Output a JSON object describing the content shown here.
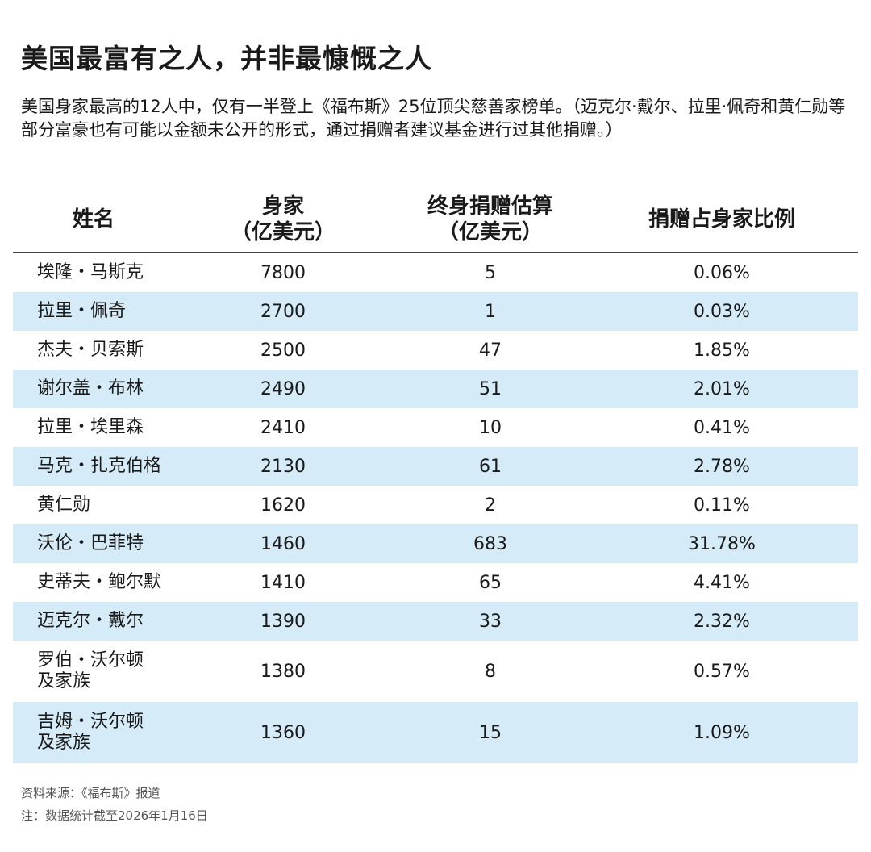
{
  "title": "美国最富有之人，并非最慷慨之人",
  "subtitle": "美国身家最高的12人中，仅有一半登上《福布斯》25位顶尖慈善家榜单。（迈克尔·戴尔、拉里·佩奇和黄仁勋等部分富豪也有可能以金额未公开的形式，通过捐赠者建议基金进行过其他捐赠。）",
  "colors": {
    "row_alt": "#d6ebf8",
    "rule": "#444444"
  },
  "chart_data": {
    "type": "table",
    "columns": [
      "姓名",
      "身家\n（亿美元）",
      "终身捐赠估算\n（亿美元）",
      "捐赠占身家比例"
    ],
    "headers": {
      "name": "姓名",
      "worth_1": "身家",
      "worth_2": "（亿美元）",
      "giving_1": "终身捐赠估算",
      "giving_2": "（亿美元）",
      "ratio": "捐赠占身家比例"
    },
    "rows": [
      {
        "name": "埃隆・马斯克",
        "worth": "7800",
        "giving": "5",
        "ratio": "0.06%"
      },
      {
        "name": "拉里・佩奇",
        "worth": "2700",
        "giving": "1",
        "ratio": "0.03%"
      },
      {
        "name": "杰夫・贝索斯",
        "worth": "2500",
        "giving": "47",
        "ratio": "1.85%"
      },
      {
        "name": "谢尔盖・布林",
        "worth": "2490",
        "giving": "51",
        "ratio": "2.01%"
      },
      {
        "name": "拉里・埃里森",
        "worth": "2410",
        "giving": "10",
        "ratio": "0.41%"
      },
      {
        "name": "马克・扎克伯格",
        "worth": "2130",
        "giving": "61",
        "ratio": "2.78%"
      },
      {
        "name": "黄仁勋",
        "worth": "1620",
        "giving": "2",
        "ratio": "0.11%"
      },
      {
        "name": "沃伦・巴菲特",
        "worth": "1460",
        "giving": "683",
        "ratio": "31.78%"
      },
      {
        "name": "史蒂夫・鲍尔默",
        "worth": "1410",
        "giving": "65",
        "ratio": "4.41%"
      },
      {
        "name": "迈克尔・戴尔",
        "worth": "1390",
        "giving": "33",
        "ratio": "2.32%"
      },
      {
        "name": "罗伯・沃尔顿\n及家族",
        "worth": "1380",
        "giving": "8",
        "ratio": "0.57%"
      },
      {
        "name": "吉姆・沃尔顿\n及家族",
        "worth": "1360",
        "giving": "15",
        "ratio": "1.09%"
      }
    ]
  },
  "footer": {
    "source": "资料来源：《福布斯》报道",
    "note": "注：数据统计截至2026年1月16日"
  }
}
